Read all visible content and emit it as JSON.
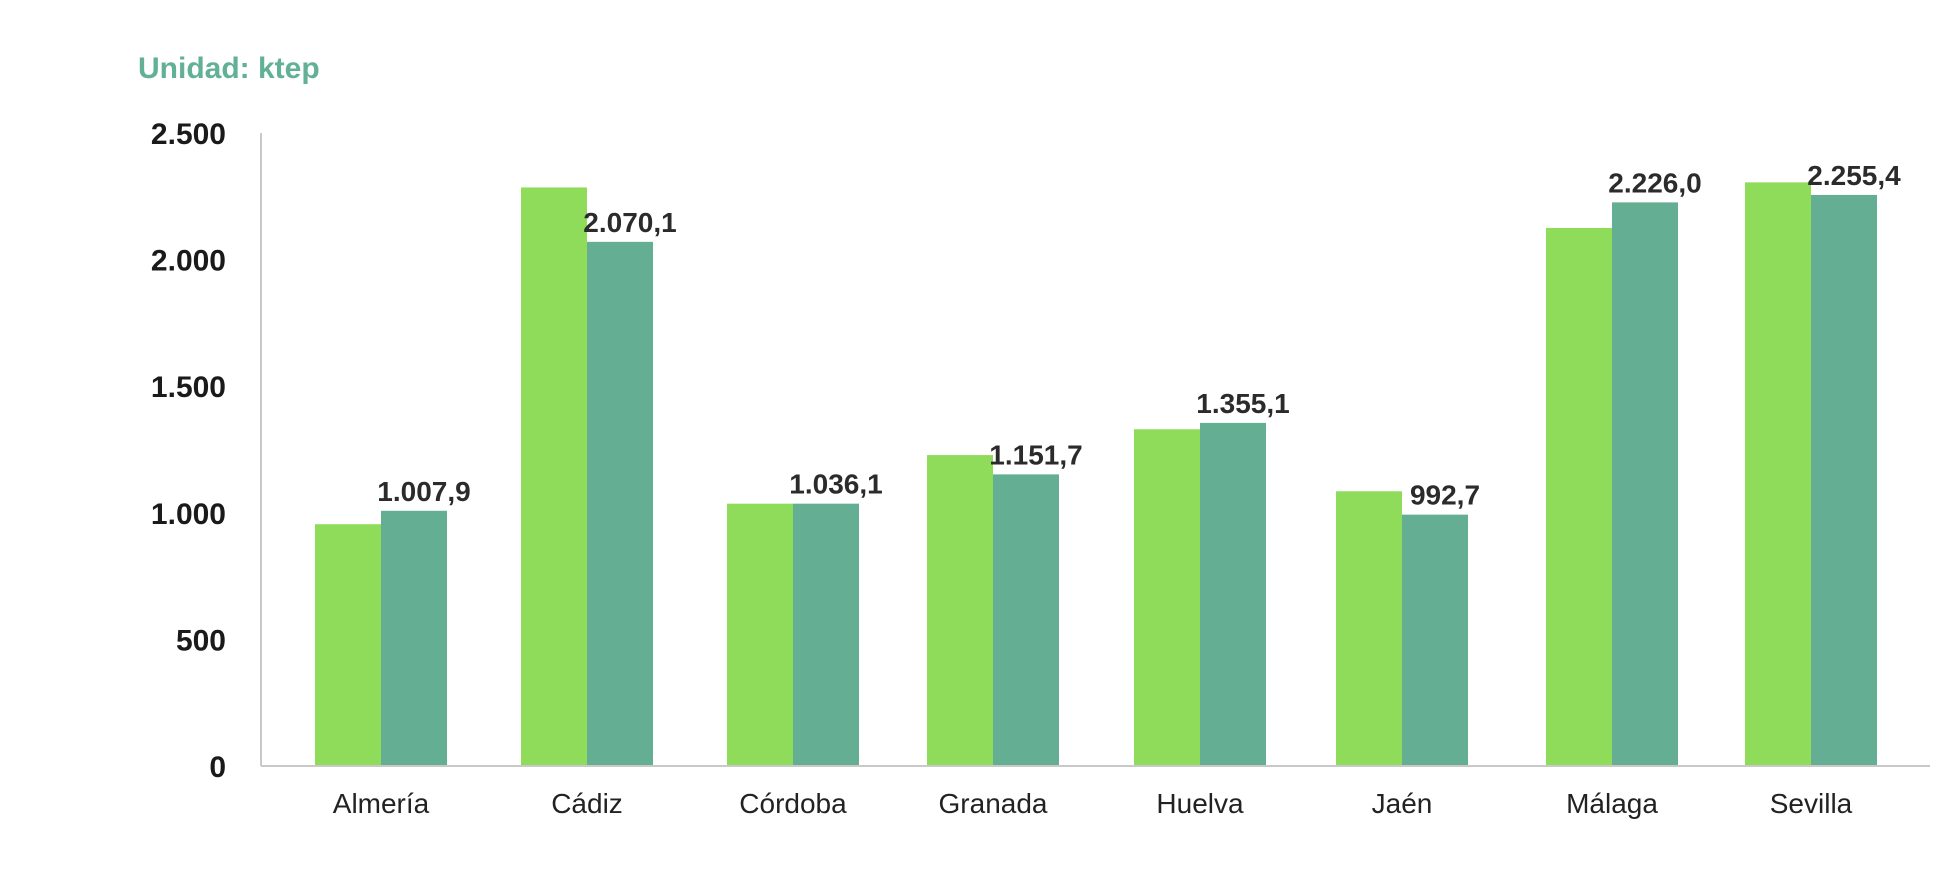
{
  "unit_label": "Unidad: ktep",
  "chart_data": {
    "type": "bar",
    "title": "",
    "xlabel": "",
    "ylabel": "",
    "ylim": [
      0,
      2500
    ],
    "y_ticks": [
      {
        "value": 0,
        "label": "0"
      },
      {
        "value": 500,
        "label": "500"
      },
      {
        "value": 1000,
        "label": "1.000"
      },
      {
        "value": 1500,
        "label": "1.500"
      },
      {
        "value": 2000,
        "label": "2.000"
      },
      {
        "value": 2500,
        "label": "2.500"
      }
    ],
    "grid": false,
    "legend": "none",
    "categories": [
      "Almería",
      "Cádiz",
      "Córdoba",
      "Granada",
      "Huelva",
      "Jaén",
      "Málaga",
      "Sevilla"
    ],
    "series": [
      {
        "color": "#8fdb5a",
        "values": [
          955,
          2285,
          1036,
          1228,
          1330,
          1085,
          2125,
          2305
        ]
      },
      {
        "color": "#64af94",
        "values": [
          1007.9,
          2070.1,
          1036.1,
          1151.7,
          1355.1,
          992.7,
          2226.0,
          2255.4
        ],
        "data_labels": [
          "1.007,9",
          "2.070,1",
          "1.036,1",
          "1.151,7",
          "1.355,1",
          "992,7",
          "2.226,0",
          "2.255,4"
        ]
      }
    ],
    "axis_color": "#c9c9c9"
  }
}
